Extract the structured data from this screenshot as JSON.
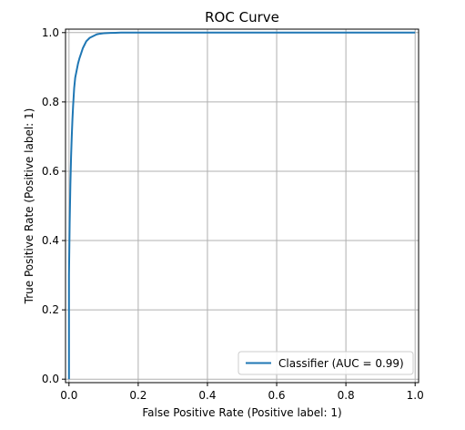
{
  "chart_data": {
    "type": "line",
    "title": "ROC Curve",
    "xlabel": "False Positive Rate (Positive label: 1)",
    "ylabel": "True Positive Rate (Positive label: 1)",
    "xlim": [
      -0.01,
      1.01
    ],
    "ylim": [
      -0.01,
      1.01
    ],
    "xticks": [
      0.0,
      0.2,
      0.4,
      0.6,
      0.8,
      1.0
    ],
    "yticks": [
      0.0,
      0.2,
      0.4,
      0.6,
      0.8,
      1.0
    ],
    "xtick_labels": [
      "0.0",
      "0.2",
      "0.4",
      "0.6",
      "0.8",
      "1.0"
    ],
    "ytick_labels": [
      "0.0",
      "0.2",
      "0.4",
      "0.6",
      "0.8",
      "1.0"
    ],
    "grid": true,
    "legend_position": "lower-right",
    "series": [
      {
        "name": "Classifier (AUC = 0.99)",
        "color": "#1f77b4",
        "x": [
          0.0,
          0.0,
          0.002,
          0.004,
          0.006,
          0.008,
          0.01,
          0.012,
          0.015,
          0.018,
          0.022,
          0.026,
          0.03,
          0.035,
          0.04,
          0.045,
          0.05,
          0.06,
          0.07,
          0.08,
          0.09,
          0.1,
          0.12,
          0.15,
          0.2,
          0.3,
          0.5,
          0.7,
          1.0
        ],
        "y": [
          0.0,
          0.3,
          0.45,
          0.56,
          0.64,
          0.7,
          0.75,
          0.79,
          0.84,
          0.87,
          0.89,
          0.91,
          0.925,
          0.94,
          0.955,
          0.965,
          0.975,
          0.985,
          0.99,
          0.995,
          0.997,
          0.998,
          0.999,
          1.0,
          1.0,
          1.0,
          1.0,
          1.0,
          1.0
        ]
      }
    ]
  }
}
